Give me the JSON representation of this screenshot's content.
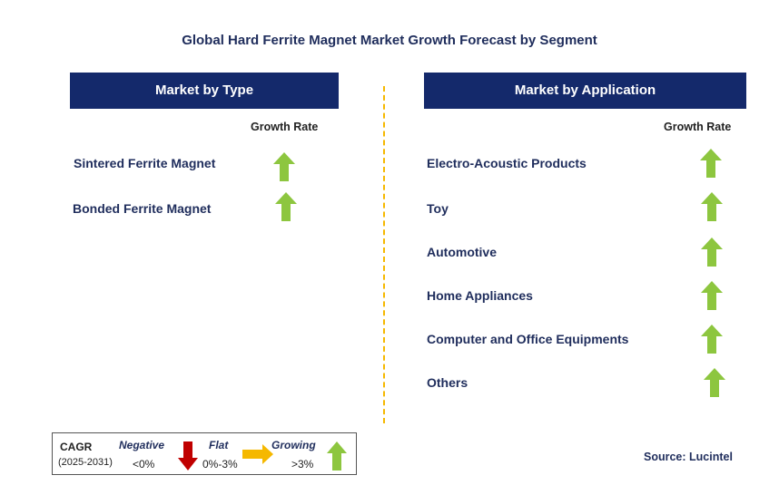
{
  "title": "Global Hard Ferrite Magnet Market Growth Forecast by Segment",
  "growth_color": "#8dc63f",
  "negative_color": "#c00000",
  "flat_color": "#f5b800",
  "left_panel": {
    "header": "Market by Type",
    "growth_rate_label": "Growth Rate",
    "items": [
      {
        "label": "Sintered Ferrite Magnet",
        "trend": "growing"
      },
      {
        "label": "Bonded Ferrite Magnet",
        "trend": "growing"
      }
    ]
  },
  "right_panel": {
    "header": "Market by Application",
    "growth_rate_label": "Growth Rate",
    "items": [
      {
        "label": "Electro-Acoustic Products",
        "trend": "growing"
      },
      {
        "label": "Toy",
        "trend": "growing"
      },
      {
        "label": "Automotive",
        "trend": "growing"
      },
      {
        "label": "Home Appliances",
        "trend": "growing"
      },
      {
        "label": "Computer and Office Equipments",
        "trend": "growing"
      },
      {
        "label": "Others",
        "trend": "growing"
      }
    ]
  },
  "legend": {
    "cagr_label": "CAGR",
    "period": "(2025-2031)",
    "negative_label": "Negative",
    "negative_range": "<0%",
    "flat_label": "Flat",
    "flat_range": "0%-3%",
    "growing_label": "Growing",
    "growing_range": ">3%"
  },
  "source": "Source: Lucintel"
}
